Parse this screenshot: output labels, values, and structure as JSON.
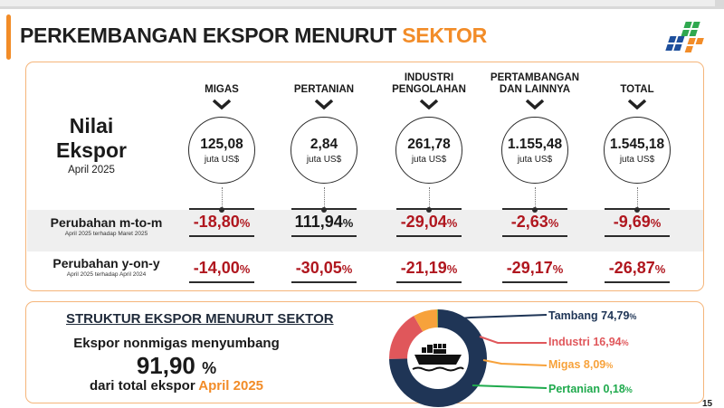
{
  "header": {
    "title_main": "PERKEMBANGAN EKSPOR MENURUT",
    "title_highlight": "SEKTOR",
    "accent_color": "#f28c28"
  },
  "logo": {
    "icon": "bps-logo",
    "colors": [
      "#1e4f9c",
      "#f28c28",
      "#2fa84f"
    ]
  },
  "nilai": {
    "title_line1": "Nilai",
    "title_line2": "Ekspor",
    "period": "April 2025"
  },
  "sectors": [
    {
      "name": "MIGAS",
      "value": "125,08",
      "unit": "juta US$",
      "mtm": "-18,80",
      "yoy": "-14,00"
    },
    {
      "name": "PERTANIAN",
      "value": "2,84",
      "unit": "juta US$",
      "mtm": "111,94",
      "yoy": "-30,05"
    },
    {
      "name": "INDUSTRI PENGOLAHAN",
      "value": "261,78",
      "unit": "juta US$",
      "mtm": "-29,04",
      "yoy": "-21,19"
    },
    {
      "name": "PERTAMBANGAN DAN LAINNYA",
      "value": "1.155,48",
      "unit": "juta US$",
      "mtm": "-2,63",
      "yoy": "-29,17"
    },
    {
      "name": "TOTAL",
      "value": "1.545,18",
      "unit": "juta US$",
      "mtm": "-9,69",
      "yoy": "-26,87"
    }
  ],
  "rows": {
    "mtm_label": "Perubahan m-to-m",
    "mtm_sub": "April 2025 terhadap Maret 2025",
    "yoy_label": "Perubahan y-on-y",
    "yoy_sub": "April 2025 terhadap April 2024",
    "pct_symbol": "%"
  },
  "structure": {
    "title": "STRUKTUR EKSPOR MENURUT SEKTOR",
    "line1": "Ekspor nonmigas menyumbang",
    "big_value": "91,90",
    "big_pct": "%",
    "line3_prefix": "dari total ekspor",
    "line3_highlight": "April 2025",
    "center_icon": "cargo-ship-icon"
  },
  "chart_data": {
    "type": "pie",
    "donut": true,
    "series": [
      {
        "name": "Tambang",
        "value": 74.79,
        "label": "74,79",
        "color": "#1f3556"
      },
      {
        "name": "Industri",
        "value": 16.94,
        "label": "16,94",
        "color": "#e0575b"
      },
      {
        "name": "Migas",
        "value": 8.09,
        "label": "8,09",
        "color": "#f7a23b"
      },
      {
        "name": "Pertanian",
        "value": 0.18,
        "label": "0,18",
        "color": "#1faa4d"
      }
    ],
    "pct_symbol": "%"
  },
  "page_number": "15"
}
